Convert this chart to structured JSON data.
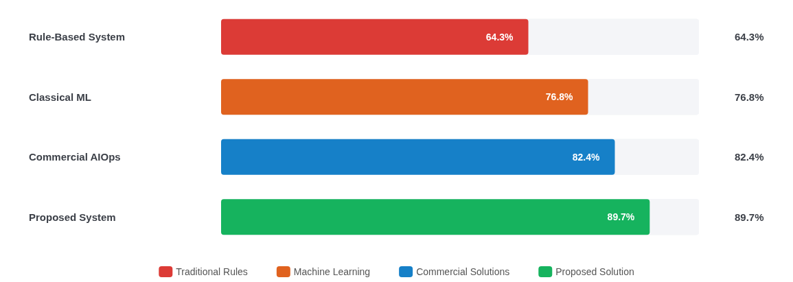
{
  "chart_data": {
    "type": "bar",
    "orientation": "horizontal",
    "categories": [
      "Rule-Based System",
      "Classical ML",
      "Commercial AIOps",
      "Proposed System"
    ],
    "series": [
      {
        "name": "Traditional Rules",
        "color": "#dc3b36",
        "values": [
          64.3,
          null,
          null,
          null
        ],
        "value_labels": [
          "64.3%",
          null,
          null,
          null
        ]
      },
      {
        "name": "Machine Learning",
        "color": "#e0621f",
        "values": [
          null,
          76.8,
          null,
          null
        ],
        "value_labels": [
          null,
          "76.8%",
          null,
          null
        ]
      },
      {
        "name": "Commercial Solutions",
        "color": "#1680c8",
        "values": [
          null,
          null,
          82.4,
          null
        ],
        "value_labels": [
          null,
          null,
          "82.4%",
          null
        ]
      },
      {
        "name": "Proposed Solution",
        "color": "#16b35e",
        "values": [
          null,
          null,
          null,
          89.7
        ],
        "value_labels": [
          null,
          null,
          null,
          "89.7%"
        ]
      }
    ],
    "xlim": [
      0,
      100
    ],
    "tick_labels": "y",
    "legend": "bottom"
  }
}
